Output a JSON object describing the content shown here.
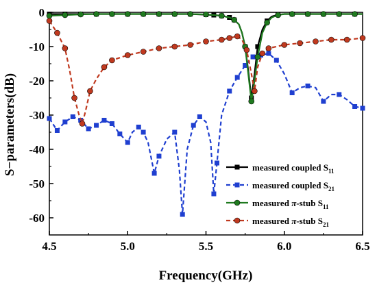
{
  "chart_data": {
    "type": "line",
    "xlabel": "Frequency(GHz)",
    "ylabel": "S−parameters(dB)",
    "xlim": [
      4.5,
      6.5
    ],
    "ylim": [
      -65,
      0
    ],
    "xticks": [
      "4.5",
      "5.0",
      "5.5",
      "6.0",
      "6.5"
    ],
    "yticks": [
      "0",
      "-10",
      "-20",
      "-30",
      "-40",
      "-50",
      "-60"
    ],
    "grid": false,
    "legend_position": "bottom-right",
    "series": [
      {
        "name": "measured coupled S11",
        "legend": {
          "prefix": "measured coupled S",
          "italic": "",
          "middle": "",
          "sub": "11"
        },
        "color": "#000000",
        "dash": "solid",
        "marker": "square",
        "x": [
          4.5,
          4.6,
          4.7,
          4.8,
          4.9,
          5.0,
          5.1,
          5.2,
          5.3,
          5.4,
          5.45,
          5.5,
          5.55,
          5.6,
          5.65,
          5.68,
          5.71,
          5.73,
          5.75,
          5.77,
          5.79,
          5.81,
          5.83,
          5.86,
          5.89,
          5.92,
          5.96,
          6.0,
          6.1,
          6.2,
          6.3,
          6.4,
          6.5
        ],
        "y": [
          -0.5,
          -0.5,
          -0.5,
          -0.5,
          -0.5,
          -0.5,
          -0.5,
          -0.5,
          -0.5,
          -0.5,
          -0.6,
          -0.7,
          -0.8,
          -1.0,
          -1.5,
          -2.2,
          -3.5,
          -6,
          -10,
          -17,
          -25,
          -18,
          -10,
          -5,
          -2.5,
          -1.2,
          -0.7,
          -0.5,
          -0.5,
          -0.5,
          -0.5,
          -0.5,
          -0.5
        ],
        "marker_x": [
          4.5,
          4.6,
          4.7,
          4.8,
          4.9,
          5.0,
          5.1,
          5.2,
          5.3,
          5.4,
          5.5,
          5.55,
          5.6,
          5.65,
          5.68,
          5.75,
          5.79,
          5.83,
          5.89,
          5.96,
          6.05,
          6.15,
          6.25,
          6.35,
          6.45
        ]
      },
      {
        "name": "measured coupled S21",
        "legend": {
          "prefix": "measured  coupled S",
          "italic": "",
          "middle": "",
          "sub": "21"
        },
        "color": "#1f3fd0",
        "dash": "dash",
        "marker": "square",
        "x": [
          4.5,
          4.55,
          4.6,
          4.65,
          4.7,
          4.75,
          4.8,
          4.85,
          4.9,
          4.95,
          5.0,
          5.03,
          5.07,
          5.1,
          5.13,
          5.17,
          5.2,
          5.25,
          5.3,
          5.33,
          5.35,
          5.38,
          5.42,
          5.46,
          5.5,
          5.53,
          5.55,
          5.57,
          5.6,
          5.65,
          5.7,
          5.75,
          5.8,
          5.85,
          5.9,
          5.95,
          6.0,
          6.05,
          6.1,
          6.15,
          6.2,
          6.25,
          6.3,
          6.35,
          6.4,
          6.45,
          6.5
        ],
        "y": [
          -31,
          -34.5,
          -32,
          -30.5,
          -31.5,
          -34,
          -33,
          -31.5,
          -32.5,
          -35.5,
          -38,
          -35,
          -33.5,
          -35,
          -38,
          -47,
          -42,
          -37,
          -35,
          -46,
          -59,
          -40,
          -33,
          -30.5,
          -32,
          -38,
          -53,
          -44,
          -30,
          -23,
          -19,
          -15.5,
          -13,
          -12.5,
          -12,
          -14,
          -18,
          -23.5,
          -22,
          -21.5,
          -22,
          -26,
          -24,
          -24,
          -25.5,
          -27.5,
          -28
        ],
        "marker_x": [
          4.5,
          4.55,
          4.6,
          4.65,
          4.7,
          4.75,
          4.8,
          4.85,
          4.9,
          4.95,
          5.0,
          5.07,
          5.1,
          5.17,
          5.2,
          5.3,
          5.35,
          5.42,
          5.46,
          5.55,
          5.57,
          5.65,
          5.7,
          5.75,
          5.8,
          5.85,
          5.9,
          5.95,
          6.05,
          6.15,
          6.25,
          6.35,
          6.45,
          6.5
        ]
      },
      {
        "name": "measured π-stub S11",
        "legend": {
          "prefix": "measured  ",
          "italic": "π",
          "middle": "-stub S",
          "sub": "11"
        },
        "color": "#1f7a1f",
        "dash": "solid",
        "marker": "circle",
        "x": [
          4.5,
          4.6,
          4.7,
          4.8,
          4.9,
          5.0,
          5.1,
          5.2,
          5.3,
          5.4,
          5.5,
          5.55,
          5.6,
          5.65,
          5.68,
          5.71,
          5.73,
          5.75,
          5.77,
          5.79,
          5.81,
          5.83,
          5.86,
          5.89,
          5.92,
          5.96,
          6.0,
          6.1,
          6.2,
          6.3,
          6.4,
          6.5
        ],
        "y": [
          -1.0,
          -0.8,
          -0.6,
          -0.5,
          -0.5,
          -0.5,
          -0.5,
          -0.5,
          -0.5,
          -0.5,
          -0.6,
          -0.8,
          -1.0,
          -1.5,
          -2.2,
          -3.5,
          -6,
          -10,
          -18,
          -26,
          -20,
          -13,
          -6,
          -3,
          -1.5,
          -0.8,
          -0.5,
          -0.5,
          -0.5,
          -0.5,
          -0.5,
          -0.5
        ],
        "marker_x": [
          4.5,
          4.6,
          4.7,
          4.8,
          4.9,
          5.0,
          5.1,
          5.2,
          5.3,
          5.4,
          5.5,
          5.6,
          5.68,
          5.75,
          5.79,
          5.83,
          5.89,
          5.96,
          6.05,
          6.15,
          6.25,
          6.35,
          6.45
        ]
      },
      {
        "name": "measured π-stub S21",
        "legend": {
          "prefix": "measured  ",
          "italic": "π",
          "middle": "-stub S",
          "sub": "21"
        },
        "color": "#c0391f",
        "dash": "dash",
        "marker": "circle",
        "x": [
          4.5,
          4.55,
          4.6,
          4.63,
          4.66,
          4.69,
          4.71,
          4.73,
          4.76,
          4.8,
          4.85,
          4.9,
          5.0,
          5.1,
          5.2,
          5.3,
          5.4,
          5.5,
          5.6,
          5.65,
          5.7,
          5.73,
          5.76,
          5.79,
          5.81,
          5.83,
          5.86,
          5.9,
          6.0,
          6.1,
          6.2,
          6.3,
          6.4,
          6.5
        ],
        "y": [
          -2.5,
          -6,
          -10.5,
          -17,
          -25,
          -30,
          -32.5,
          -29,
          -23,
          -19.5,
          -16,
          -14,
          -12.5,
          -11.5,
          -10.5,
          -10,
          -9.5,
          -8.5,
          -8,
          -7.5,
          -7,
          -8,
          -11,
          -18,
          -23,
          -16,
          -12,
          -10.5,
          -9.5,
          -9,
          -8.5,
          -8,
          -8,
          -7.5
        ],
        "marker_x": [
          4.5,
          4.55,
          4.6,
          4.66,
          4.71,
          4.76,
          4.85,
          4.9,
          5.0,
          5.1,
          5.2,
          5.3,
          5.4,
          5.5,
          5.6,
          5.65,
          5.7,
          5.76,
          5.81,
          5.86,
          5.9,
          6.0,
          6.1,
          6.2,
          6.3,
          6.4,
          6.5
        ]
      }
    ]
  }
}
